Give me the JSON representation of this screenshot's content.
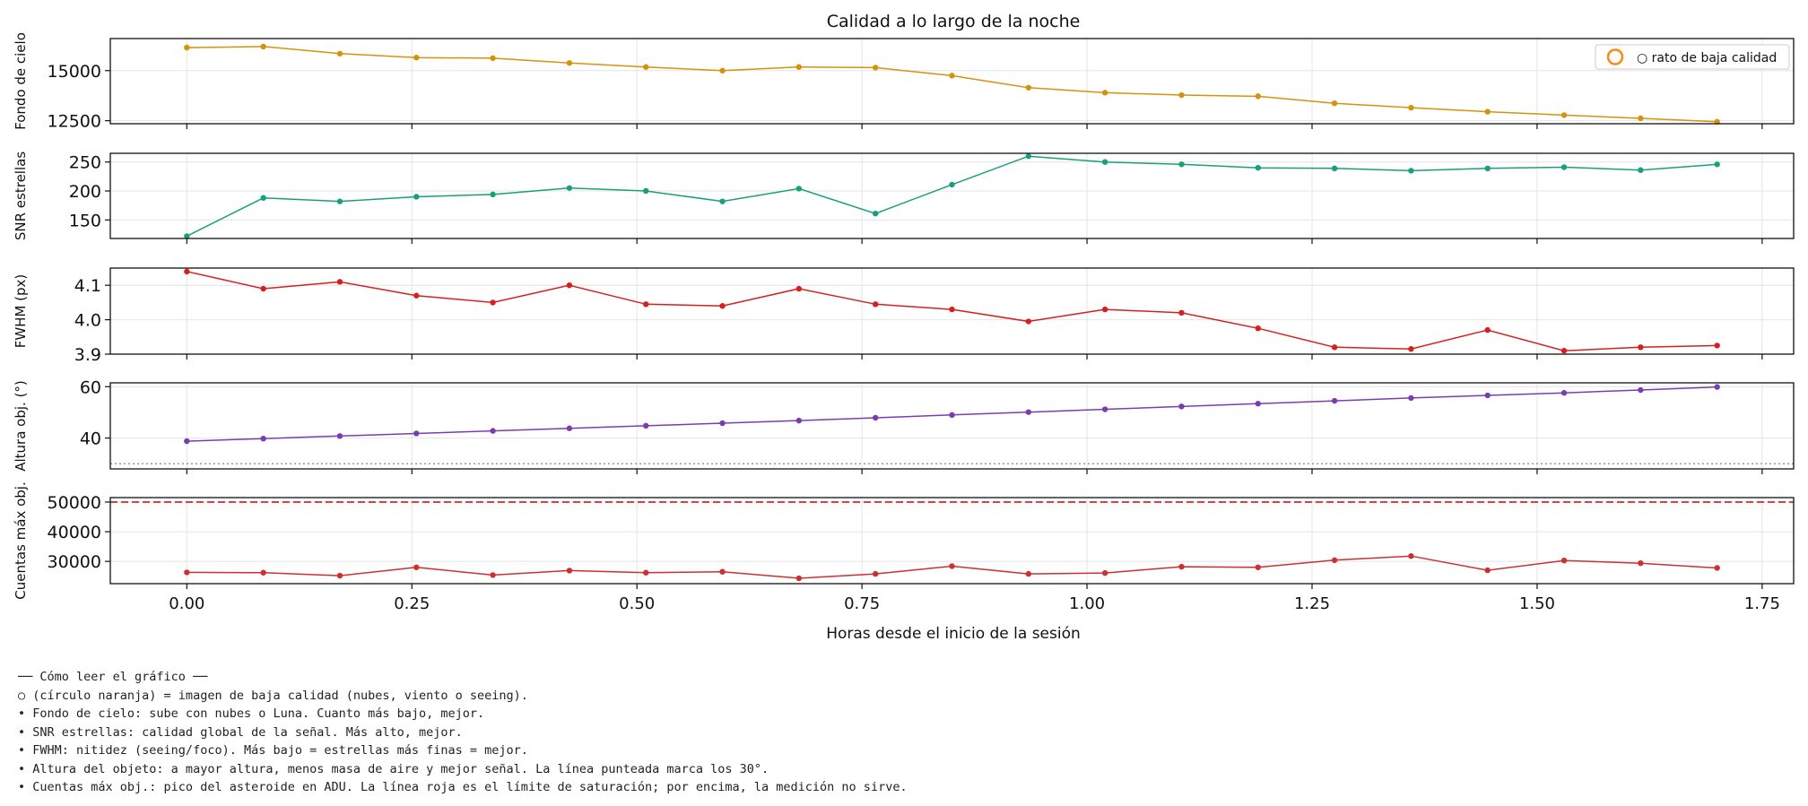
{
  "chart_data": {
    "type": "line",
    "title": "Calidad a lo largo de la noche",
    "xlabel": "Horas desde el inicio de la sesión",
    "xlim": [
      -0.085,
      1.785
    ],
    "xticks": [
      0.0,
      0.25,
      0.5,
      0.75,
      1.0,
      1.25,
      1.5,
      1.75
    ],
    "xtick_labels": [
      "0.00",
      "0.25",
      "0.50",
      "0.75",
      "1.00",
      "1.25",
      "1.50",
      "1.75"
    ],
    "x": [
      0.0,
      0.085,
      0.17,
      0.255,
      0.34,
      0.425,
      0.51,
      0.595,
      0.68,
      0.765,
      0.85,
      0.935,
      1.02,
      1.105,
      1.19,
      1.275,
      1.36,
      1.445,
      1.53,
      1.615,
      1.7
    ],
    "grid": true,
    "legend": {
      "placement": "top-right",
      "label": "○ rato de baja calidad",
      "marker_color": "#f28e1c"
    },
    "panels": [
      {
        "ylabel": "Fondo de cielo",
        "color": "#d4930f",
        "ylim": [
          12350,
          16600
        ],
        "yticks": [
          12500,
          15000
        ],
        "ytick_labels": [
          "12500",
          "15000"
        ],
        "values": [
          16150,
          16200,
          15850,
          15650,
          15620,
          15380,
          15180,
          15000,
          15180,
          15150,
          14750,
          14150,
          13900,
          13780,
          13720,
          13370,
          13150,
          12950,
          12780,
          12620,
          12450
        ]
      },
      {
        "ylabel": "SNR estrellas",
        "color": "#17a079",
        "ylim": [
          118,
          265
        ],
        "yticks": [
          150,
          200,
          250
        ],
        "ytick_labels": [
          "150",
          "200",
          "250"
        ],
        "values": [
          122,
          188,
          182,
          190,
          194,
          205,
          200,
          182,
          204,
          161,
          211,
          260,
          250,
          246,
          240,
          239,
          235,
          239,
          241,
          236,
          246
        ]
      },
      {
        "ylabel": "FWHM (px)",
        "color": "#d62020",
        "ylim": [
          3.9,
          4.15
        ],
        "yticks": [
          3.9,
          4.0,
          4.1
        ],
        "ytick_labels": [
          "3.9",
          "4.0",
          "4.1"
        ],
        "values": [
          4.14,
          4.09,
          4.11,
          4.07,
          4.05,
          4.1,
          4.045,
          4.04,
          4.09,
          4.045,
          4.03,
          3.995,
          4.03,
          4.02,
          3.975,
          3.92,
          3.915,
          3.97,
          3.91,
          3.92,
          3.925
        ]
      },
      {
        "ylabel": "Altura obj. (°)",
        "color": "#7a3db0",
        "ylim": [
          28,
          61.5
        ],
        "yticks": [
          40,
          60
        ],
        "ytick_labels": [
          "40",
          "60"
        ],
        "reference_line": {
          "value": 30,
          "style": "dotted",
          "color": "#999999"
        },
        "values": [
          38.8,
          39.8,
          40.8,
          41.8,
          42.8,
          43.8,
          44.8,
          45.8,
          46.8,
          47.9,
          49.0,
          50.1,
          51.2,
          52.3,
          53.4,
          54.5,
          55.6,
          56.6,
          57.6,
          58.7,
          59.9
        ]
      },
      {
        "ylabel": "Cuentas máx obj.",
        "color": "#cc3030",
        "ylim": [
          22500,
          51500
        ],
        "yticks": [
          30000,
          40000,
          50000
        ],
        "ytick_labels": [
          "30000",
          "40000",
          "50000"
        ],
        "reference_line": {
          "value": 50000,
          "style": "dashed",
          "color": "#d94040"
        },
        "values": [
          26300,
          26200,
          25200,
          28000,
          25400,
          26900,
          26200,
          26500,
          24300,
          25800,
          28400,
          25800,
          26100,
          28200,
          28000,
          30400,
          31800,
          27000,
          30300,
          29400,
          27800
        ]
      }
    ]
  },
  "notes": {
    "heading": "── Cómo leer el gráfico ──",
    "lines": [
      "○ (círculo naranja) = imagen de baja calidad (nubes, viento o seeing).",
      "• Fondo de cielo: sube con nubes o Luna. Cuanto más bajo, mejor.",
      "• SNR estrellas: calidad global de la señal. Más alto, mejor.",
      "• FWHM: nitidez (seeing/foco). Más bajo = estrellas más finas = mejor.",
      "• Altura del objeto: a mayor altura, menos masa de aire y mejor señal. La línea punteada marca los 30°.",
      "• Cuentas máx obj.: pico del asteroide en ADU. La línea roja es el límite de saturación; por encima, la medición no sirve."
    ]
  }
}
